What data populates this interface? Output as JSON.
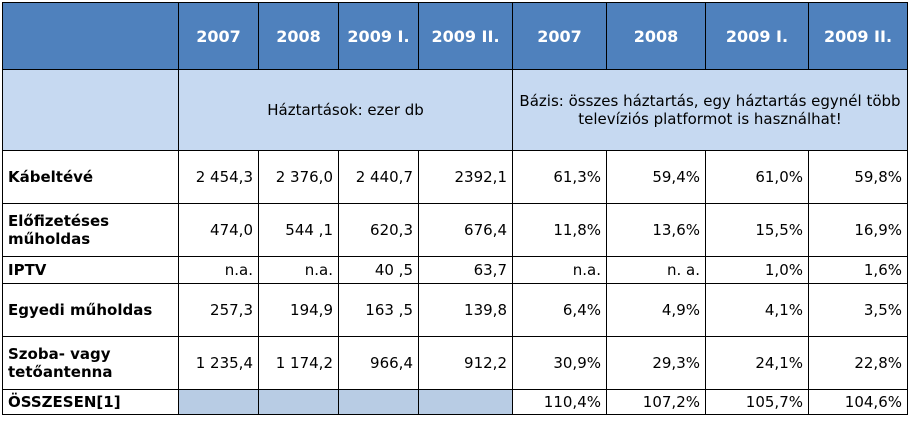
{
  "table": {
    "header": [
      "2007",
      "2008",
      "2009 I.",
      "2009 II.",
      "2007",
      "2008",
      "2009 I.",
      "2009 II."
    ],
    "units_note": "Háztartások: ezer db",
    "base_note": "Bázis: összes háztartás, egy háztartás egynél több televíziós platformot is használhat!",
    "rows": [
      {
        "label": "Kábeltévé",
        "values": [
          "2 454,3",
          "2 376,0",
          "2 440,7",
          "2392,1",
          "61,3%",
          "59,4%",
          "61,0%",
          "59,8%"
        ]
      },
      {
        "label": "Előfizetéses műholdas",
        "values": [
          "474,0",
          "544 ,1",
          "620,3",
          "676,4",
          "11,8%",
          "13,6%",
          "15,5%",
          "16,9%"
        ]
      },
      {
        "label": "IPTV",
        "values": [
          "n.a.",
          "n.a.",
          "40 ,5",
          "63,7",
          "n.a.",
          "n. a.",
          "1,0%",
          "1,6%"
        ]
      },
      {
        "label": "Egyedi műholdas",
        "values": [
          "257,3",
          "194,9",
          "163 ,5",
          "139,8",
          "6,4%",
          "4,9%",
          "4,1%",
          "3,5%"
        ]
      },
      {
        "label": "Szoba- vagy tetőantenna",
        "values": [
          "1 235,4",
          "1 174,2",
          "966,4",
          "912,2",
          "30,9%",
          "29,3%",
          "24,1%",
          "22,8%"
        ]
      }
    ],
    "total": {
      "label": "ÖSSZESEN[1]",
      "values": [
        "110,4%",
        "107,2%",
        "105,7%",
        "104,6%"
      ]
    }
  }
}
